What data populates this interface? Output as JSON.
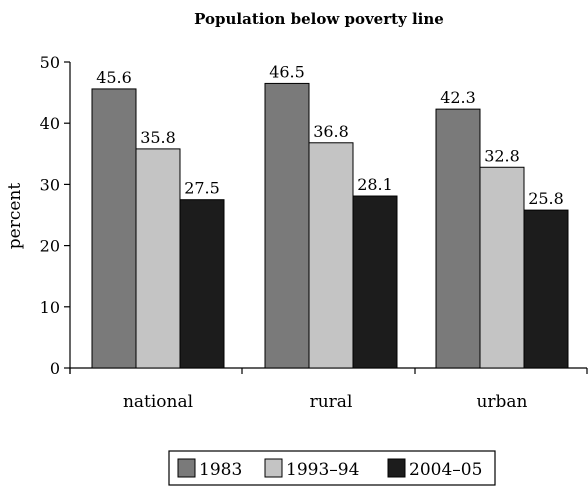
{
  "chart_data": {
    "type": "bar",
    "title": "Population below poverty line",
    "xlabel": "",
    "ylabel": "percent",
    "ylim": [
      0,
      50
    ],
    "yticks": [
      0,
      10,
      20,
      30,
      40,
      50
    ],
    "grid": false,
    "legend_position": "bottom",
    "categories": [
      "national",
      "rural",
      "urban"
    ],
    "series": [
      {
        "name": "1983",
        "values": [
          45.6,
          46.5,
          42.3
        ],
        "color": "#7a7a7a"
      },
      {
        "name": "1993–94",
        "values": [
          35.8,
          36.8,
          32.8
        ],
        "color": "#c4c4c4"
      },
      {
        "name": "2004–05",
        "values": [
          27.5,
          28.1,
          25.8
        ],
        "color": "#1c1c1c"
      }
    ]
  }
}
